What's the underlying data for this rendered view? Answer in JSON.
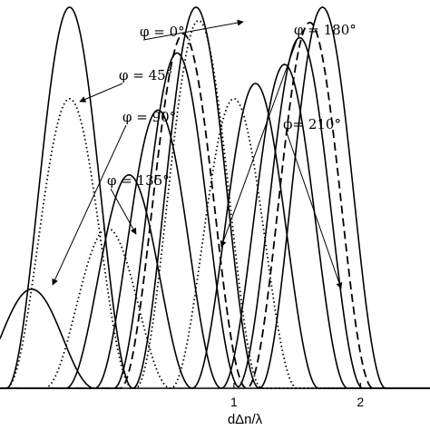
{
  "chart_data": {
    "type": "line",
    "title": "",
    "xlabel": "dΔn/λ",
    "ylabel": "",
    "xlim": [
      -0.85,
      2.55
    ],
    "ylim": [
      0,
      1
    ],
    "xticks": [
      {
        "value": 1,
        "label": "1"
      },
      {
        "value": 2,
        "label": "2"
      }
    ],
    "grid": false,
    "legend": "none",
    "series": [
      {
        "label": "φ = 0°",
        "style": "solid",
        "peaks": [
          {
            "x": -0.3,
            "y": 1.0
          },
          {
            "x": 0.7,
            "y": 1.0
          },
          {
            "x": 1.7,
            "y": 1.0
          }
        ]
      },
      {
        "label": "φ = 45°",
        "style": "dotted",
        "peaks": [
          {
            "x": -0.3,
            "y": 0.76
          },
          {
            "x": 0.72,
            "y": 0.965
          }
        ]
      },
      {
        "label": "φ = 45°",
        "style": "solid",
        "peaks": [
          {
            "x": 0.55,
            "y": 0.88
          },
          {
            "x": 1.52,
            "y": 0.92
          }
        ]
      },
      {
        "label": "φ = 90°",
        "style": "solid",
        "peaks": [
          {
            "x": -0.6,
            "y": 0.26
          },
          {
            "x": 0.4,
            "y": 0.73
          },
          {
            "x": 1.4,
            "y": 0.85
          }
        ]
      },
      {
        "label": "φ = 135°",
        "style": "solid",
        "peaks": [
          {
            "x": 0.17,
            "y": 0.56
          },
          {
            "x": 1.17,
            "y": 0.8
          }
        ]
      },
      {
        "label": "φ = 180°",
        "style": "dotted",
        "peaks": [
          {
            "x": 0.0,
            "y": 0.42
          },
          {
            "x": 1.0,
            "y": 0.76
          }
        ]
      },
      {
        "label": "φ = 210°",
        "style": "dashed",
        "peaks": [
          {
            "x": 0.6,
            "y": 0.93
          },
          {
            "x": 1.6,
            "y": 0.96
          }
        ]
      }
    ],
    "annotations": [
      {
        "text": "φ = 0°"
      },
      {
        "text": "φ = 45°"
      },
      {
        "text": "φ = 90°"
      },
      {
        "text": "φ = 135°"
      },
      {
        "text": "φ = 180°"
      },
      {
        "text": "φ= 210°"
      }
    ],
    "colors": {
      "line": "#000000",
      "background": "#ffffff"
    }
  }
}
